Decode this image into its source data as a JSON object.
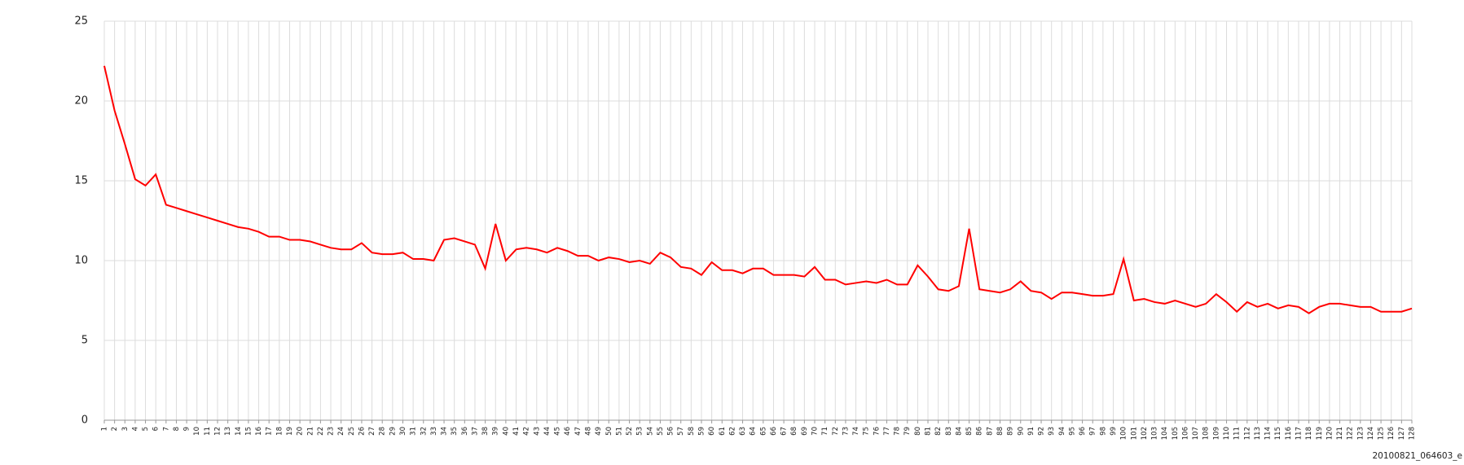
{
  "chart_data": {
    "type": "line",
    "categories": [
      "1",
      "2",
      "3",
      "4",
      "5",
      "6",
      "7",
      "8",
      "9",
      "10",
      "11",
      "12",
      "13",
      "14",
      "15",
      "16",
      "17",
      "18",
      "19",
      "20",
      "21",
      "22",
      "23",
      "24",
      "25",
      "26",
      "27",
      "28",
      "29",
      "30",
      "31",
      "32",
      "33",
      "34",
      "35",
      "36",
      "37",
      "38",
      "39",
      "40",
      "41",
      "42",
      "43",
      "44",
      "45",
      "46",
      "47",
      "48",
      "49",
      "50",
      "51",
      "52",
      "53",
      "54",
      "55",
      "56",
      "57",
      "58",
      "59",
      "60",
      "61",
      "62",
      "63",
      "64",
      "65",
      "66",
      "67",
      "68",
      "69",
      "70",
      "71",
      "72",
      "73",
      "74",
      "75",
      "76",
      "77",
      "78",
      "79",
      "80",
      "81",
      "82",
      "83",
      "84",
      "85",
      "86",
      "87",
      "88",
      "89",
      "90",
      "91",
      "92",
      "93",
      "94",
      "95",
      "96",
      "97",
      "98",
      "99",
      "100",
      "101",
      "102",
      "103",
      "104",
      "105",
      "106",
      "107",
      "108",
      "109",
      "110",
      "111",
      "112",
      "113",
      "114",
      "115",
      "116",
      "117",
      "118",
      "119",
      "120",
      "121",
      "122",
      "123",
      "124",
      "125",
      "126",
      "127",
      "128"
    ],
    "series": [
      {
        "color": "#ff0000",
        "values": [
          22.2,
          19.4,
          17.3,
          15.1,
          14.7,
          15.4,
          13.5,
          13.3,
          13.1,
          12.9,
          12.7,
          12.5,
          12.3,
          12.1,
          12.0,
          11.8,
          11.5,
          11.5,
          11.3,
          11.3,
          11.2,
          11.0,
          10.8,
          10.7,
          10.7,
          11.1,
          10.5,
          10.4,
          10.4,
          10.5,
          10.1,
          10.1,
          10.0,
          11.3,
          11.4,
          11.2,
          11.0,
          9.5,
          12.3,
          10.0,
          10.7,
          10.8,
          10.7,
          10.5,
          10.8,
          10.6,
          10.3,
          10.3,
          10.0,
          10.2,
          10.1,
          9.9,
          10.0,
          9.8,
          10.5,
          10.2,
          9.6,
          9.5,
          9.1,
          9.9,
          9.4,
          9.4,
          9.2,
          9.5,
          9.5,
          9.1,
          9.1,
          9.1,
          9.0,
          9.6,
          8.8,
          8.8,
          8.5,
          8.6,
          8.7,
          8.6,
          8.8,
          8.5,
          8.5,
          9.7,
          9.0,
          8.2,
          8.1,
          8.4,
          12.0,
          8.2,
          8.1,
          8.0,
          8.2,
          8.7,
          8.1,
          8.0,
          7.6,
          8.0,
          8.0,
          7.9,
          7.8,
          7.8,
          7.9,
          10.1,
          7.5,
          7.6,
          7.4,
          7.3,
          7.5,
          7.3,
          7.1,
          7.3,
          7.9,
          7.4,
          6.8,
          7.4,
          7.1,
          7.3,
          7.0,
          7.2,
          7.1,
          6.7,
          7.1,
          7.3,
          7.3,
          7.2,
          7.1,
          7.1,
          6.8,
          6.8,
          6.8,
          7.0
        ]
      }
    ],
    "ylim": [
      0,
      25
    ],
    "yticks": [
      0,
      5,
      10,
      15,
      20,
      25
    ],
    "grid": true,
    "annotation": "20100821_064603_e"
  }
}
